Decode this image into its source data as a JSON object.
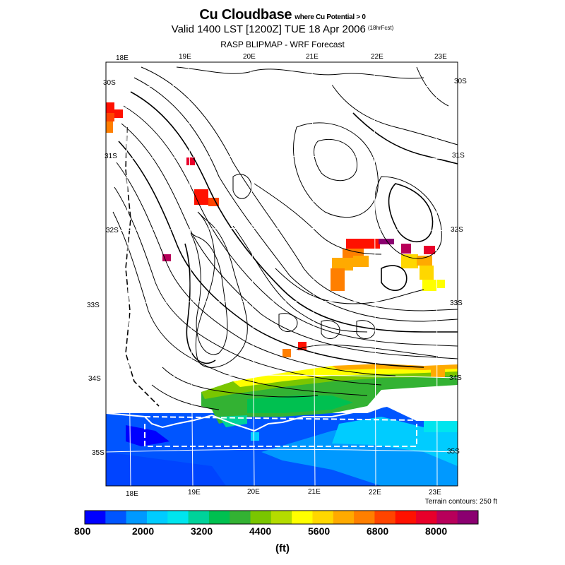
{
  "title": {
    "main": "Cu Cloudbase",
    "qualifier": "where Cu Potential > 0",
    "valid": "Valid 1400 LST [1200Z] TUE 18 Apr 2006",
    "forecast": "(18hrFcst)",
    "subtitle": "RASP BLIPMAP - WRF Forecast"
  },
  "axes": {
    "top_lon": [
      "18E",
      "19E",
      "20E",
      "21E",
      "22E",
      "23E"
    ],
    "bottom_lon": [
      "18E",
      "19E",
      "20E",
      "21E",
      "22E",
      "23E"
    ],
    "left_lat": [
      "30S",
      "31S",
      "32S",
      "33S",
      "34S",
      "35S"
    ],
    "right_lat": [
      "30S",
      "31S",
      "32S",
      "33S",
      "34S",
      "35S"
    ]
  },
  "terrain_note": "Terrain contours: 250 ft",
  "colorbar": {
    "colors": [
      "#0000ff",
      "#0055ff",
      "#0099ff",
      "#00ccff",
      "#00e5ee",
      "#00d29a",
      "#00c050",
      "#33b233",
      "#7ac600",
      "#b4dc00",
      "#ffff00",
      "#ffd700",
      "#ffaa00",
      "#ff7f00",
      "#ff4400",
      "#ff1100",
      "#e8002a",
      "#b8005a",
      "#8b0070"
    ],
    "labels": [
      "800",
      "2000",
      "3200",
      "4400",
      "5600",
      "6800",
      "8000"
    ],
    "units": "(ft)"
  }
}
